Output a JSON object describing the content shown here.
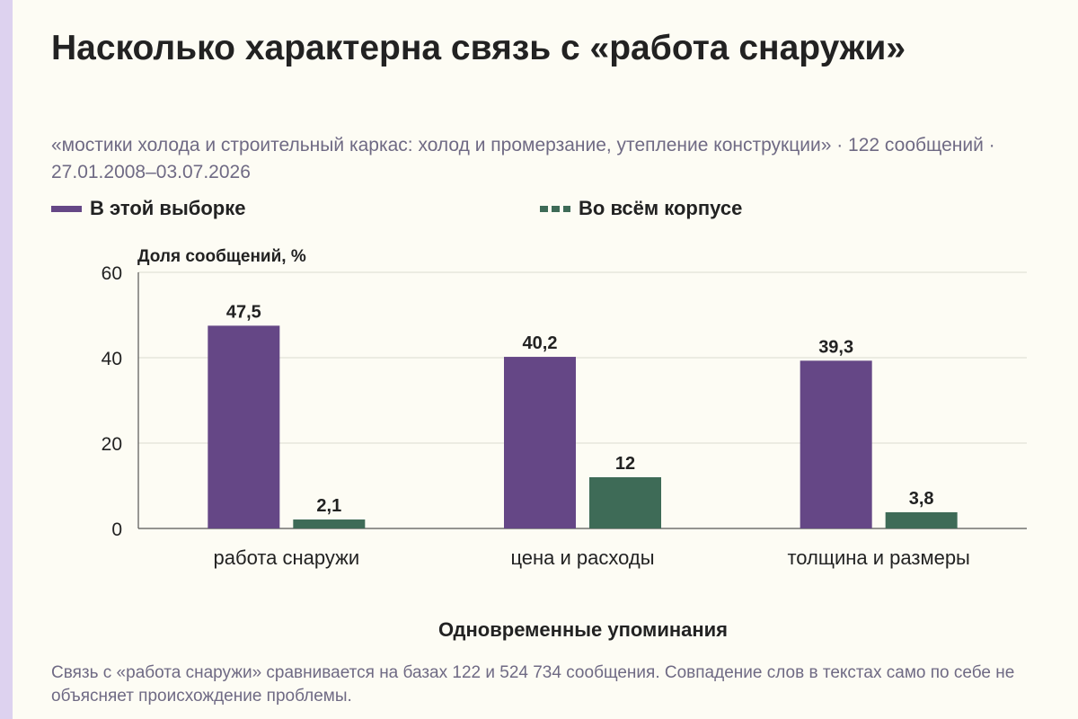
{
  "title": "Насколько характерна связь с «работа снаружи»",
  "subtitle": "«мостики холода и строительный каркас: холод и промерзание, утепление конструкции» · 122 сообщений · 27.01.2008–03.07.2026",
  "footnote": "Связь с «работа снаружи» сравнивается на базах 122 и 524 734 сообщения. Совпадение слов в текстах само по себе не объясняет происхождение проблемы.",
  "colors": {
    "sample": "#654786",
    "corpus": "#3e6b57",
    "grid": "#dcdcd0",
    "axis": "#555555",
    "text": "#222222"
  },
  "chart_data": {
    "type": "bar",
    "ylabel": "Доля сообщений, %",
    "xlabel": "Одновременные упоминания",
    "ylim": [
      0,
      60
    ],
    "yticks": [
      0,
      20,
      40,
      60
    ],
    "grid": true,
    "legend_position": "top-left",
    "categories": [
      "работа снаружи",
      "цена и расходы",
      "толщина и размеры"
    ],
    "series": [
      {
        "name": "В этой выборке",
        "values": [
          47.5,
          40.2,
          39.3
        ],
        "labels": [
          "47,5",
          "40,2",
          "39,3"
        ]
      },
      {
        "name": "Во всём корпусе",
        "values": [
          2.1,
          12,
          3.8
        ],
        "labels": [
          "2,1",
          "12",
          "3,8"
        ]
      }
    ]
  }
}
